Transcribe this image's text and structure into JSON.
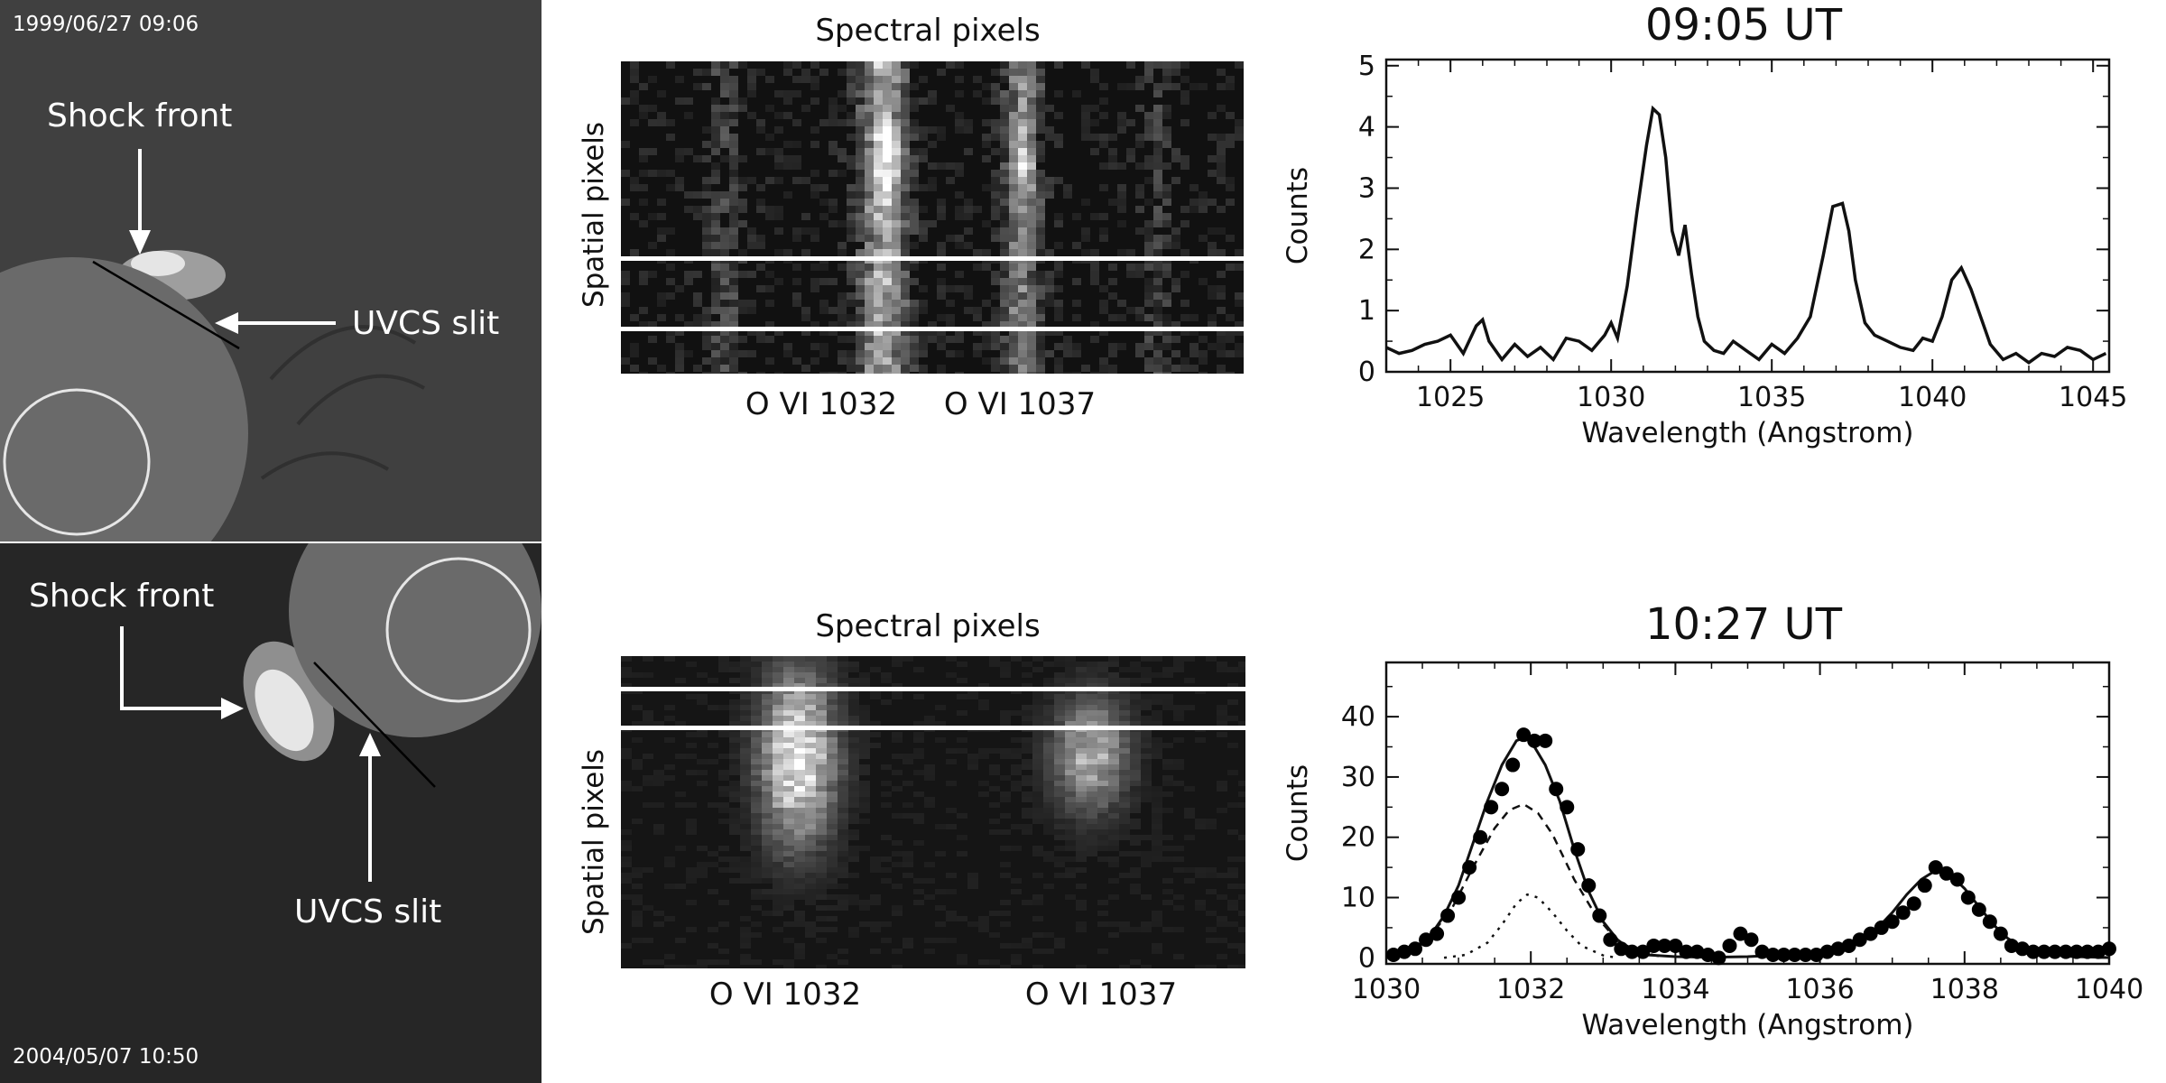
{
  "top_row": {
    "lasco": {
      "timestamp": "1999/06/27  09:06",
      "shock_label": "Shock front",
      "slit_label": "UVCS slit"
    },
    "spectrum_image": {
      "title": "Spectral pixels",
      "ylabel": "Spatial pixels",
      "line1": "O  VI  1032",
      "line2": "O  VI  1037"
    },
    "plot_title": "09:05 UT"
  },
  "bottom_row": {
    "lasco": {
      "timestamp": "2004/05/07   10:50",
      "shock_label": "Shock front",
      "slit_label": "UVCS slit"
    },
    "spectrum_image": {
      "title": "Spectral pixels",
      "ylabel": "Spatial pixels",
      "line1": "O  VI  1032",
      "line2": "O  VI  1037"
    },
    "plot_title": "10:27 UT"
  },
  "chart_data": [
    {
      "type": "line",
      "title": "09:05 UT",
      "xlabel": "Wavelength (Angstrom)",
      "ylabel": "Counts",
      "xlim": [
        1023,
        1045.5
      ],
      "ylim": [
        0,
        5.1
      ],
      "xticks": [
        1025,
        1030,
        1035,
        1040,
        1045
      ],
      "yticks": [
        0,
        1,
        2,
        3,
        4,
        5
      ],
      "series": [
        {
          "style": "solid",
          "x": [
            1023.0,
            1023.4,
            1023.8,
            1024.2,
            1024.6,
            1025.0,
            1025.4,
            1025.8,
            1026.0,
            1026.2,
            1026.6,
            1027.0,
            1027.4,
            1027.8,
            1028.2,
            1028.6,
            1029.0,
            1029.4,
            1029.8,
            1030.0,
            1030.2,
            1030.5,
            1030.8,
            1031.1,
            1031.3,
            1031.5,
            1031.7,
            1031.9,
            1032.1,
            1032.3,
            1032.5,
            1032.7,
            1032.9,
            1033.2,
            1033.5,
            1033.8,
            1034.2,
            1034.6,
            1035.0,
            1035.4,
            1035.8,
            1036.2,
            1036.6,
            1036.9,
            1037.2,
            1037.4,
            1037.6,
            1037.9,
            1038.2,
            1038.6,
            1039.0,
            1039.4,
            1039.7,
            1040.0,
            1040.3,
            1040.6,
            1040.9,
            1041.2,
            1041.5,
            1041.8,
            1042.2,
            1042.6,
            1043.0,
            1043.4,
            1043.8,
            1044.2,
            1044.6,
            1045.0,
            1045.4
          ],
          "y": [
            0.4,
            0.3,
            0.35,
            0.45,
            0.5,
            0.6,
            0.3,
            0.75,
            0.85,
            0.5,
            0.2,
            0.45,
            0.25,
            0.4,
            0.2,
            0.55,
            0.5,
            0.35,
            0.6,
            0.8,
            0.55,
            1.4,
            2.6,
            3.7,
            4.3,
            4.2,
            3.5,
            2.3,
            1.9,
            2.4,
            1.6,
            0.9,
            0.5,
            0.35,
            0.3,
            0.5,
            0.35,
            0.2,
            0.45,
            0.3,
            0.55,
            0.9,
            1.9,
            2.7,
            2.75,
            2.3,
            1.5,
            0.8,
            0.6,
            0.5,
            0.4,
            0.35,
            0.55,
            0.5,
            0.9,
            1.5,
            1.7,
            1.35,
            0.9,
            0.45,
            0.2,
            0.3,
            0.15,
            0.3,
            0.25,
            0.4,
            0.35,
            0.2,
            0.3
          ]
        }
      ]
    },
    {
      "type": "scatter",
      "title": "10:27 UT",
      "xlabel": "Wavelength (Angstrom)",
      "ylabel": "Counts",
      "xlim": [
        1030,
        1040
      ],
      "ylim": [
        -1,
        49
      ],
      "xticks": [
        1030,
        1032,
        1034,
        1036,
        1038,
        1040
      ],
      "yticks": [
        0,
        10,
        20,
        30,
        40
      ],
      "points": {
        "x": [
          1030.1,
          1030.25,
          1030.4,
          1030.55,
          1030.7,
          1030.85,
          1031.0,
          1031.15,
          1031.3,
          1031.45,
          1031.6,
          1031.75,
          1031.9,
          1032.05,
          1032.2,
          1032.35,
          1032.5,
          1032.65,
          1032.8,
          1032.95,
          1033.1,
          1033.25,
          1033.4,
          1033.55,
          1033.7,
          1033.85,
          1034.0,
          1034.15,
          1034.3,
          1034.45,
          1034.6,
          1034.75,
          1034.9,
          1035.05,
          1035.2,
          1035.35,
          1035.5,
          1035.65,
          1035.8,
          1035.95,
          1036.1,
          1036.25,
          1036.4,
          1036.55,
          1036.7,
          1036.85,
          1037.0,
          1037.15,
          1037.3,
          1037.45,
          1037.6,
          1037.75,
          1037.9,
          1038.05,
          1038.2,
          1038.35,
          1038.5,
          1038.65,
          1038.8,
          1038.95,
          1039.1,
          1039.25,
          1039.4,
          1039.55,
          1039.7,
          1039.85,
          1040.0
        ],
        "y": [
          0.5,
          1,
          1.5,
          3,
          4,
          7,
          10,
          15,
          20,
          25,
          28,
          32,
          37,
          36,
          36,
          28,
          25,
          18,
          12,
          7,
          3,
          1.5,
          1,
          1,
          2,
          2,
          2,
          1,
          1,
          0.5,
          0,
          2,
          4,
          3,
          1,
          0.5,
          0.5,
          0.5,
          0.5,
          0.5,
          1,
          1.5,
          2,
          3,
          4,
          5,
          6,
          7.5,
          9,
          12,
          15,
          14,
          13,
          10,
          8,
          6,
          4,
          2,
          1.5,
          1,
          1,
          1,
          1,
          1,
          1,
          1,
          1.5
        ]
      },
      "series": [
        {
          "style": "solid",
          "x": [
            1030.0,
            1030.2,
            1030.4,
            1030.6,
            1030.8,
            1031.0,
            1031.2,
            1031.4,
            1031.6,
            1031.8,
            1031.9,
            1032.0,
            1032.2,
            1032.4,
            1032.6,
            1032.8,
            1033.0,
            1033.2,
            1033.4,
            1033.6,
            1034.0,
            1034.5,
            1035.0,
            1035.5,
            1036.0,
            1036.4,
            1036.8,
            1037.0,
            1037.2,
            1037.4,
            1037.6,
            1037.8,
            1038.0,
            1038.2,
            1038.4,
            1038.6,
            1038.8,
            1039.0,
            1039.5,
            1040.0
          ],
          "y": [
            0.2,
            0.6,
            1.5,
            3.5,
            7,
            12,
            19,
            26,
            32,
            36,
            36.5,
            36,
            32,
            26,
            18,
            11,
            6,
            3,
            1.2,
            0.5,
            0.2,
            0.1,
            0.2,
            0.5,
            1.2,
            2.5,
            5,
            7.5,
            10.5,
            13,
            14.5,
            13.8,
            11.5,
            8.5,
            5.5,
            3.2,
            1.7,
            0.8,
            0.2,
            0.05
          ]
        },
        {
          "style": "dashed",
          "x": [
            1030.0,
            1030.3,
            1030.6,
            1030.9,
            1031.2,
            1031.5,
            1031.7,
            1031.9,
            1032.1,
            1032.3,
            1032.6,
            1032.9,
            1033.2,
            1033.5,
            1033.8
          ],
          "y": [
            0.2,
            1,
            3.5,
            8,
            15,
            21.5,
            24.5,
            25.5,
            24,
            20.5,
            13,
            7,
            2.8,
            1,
            0.2
          ]
        },
        {
          "style": "dotted",
          "x": [
            1030.8,
            1031.1,
            1031.4,
            1031.6,
            1031.8,
            1031.95,
            1032.1,
            1032.3,
            1032.5,
            1032.7,
            1033.0,
            1033.2
          ],
          "y": [
            0,
            0.5,
            2.5,
            5.5,
            9,
            10.5,
            10,
            7.5,
            4.5,
            2,
            0.4,
            0
          ]
        }
      ]
    }
  ]
}
